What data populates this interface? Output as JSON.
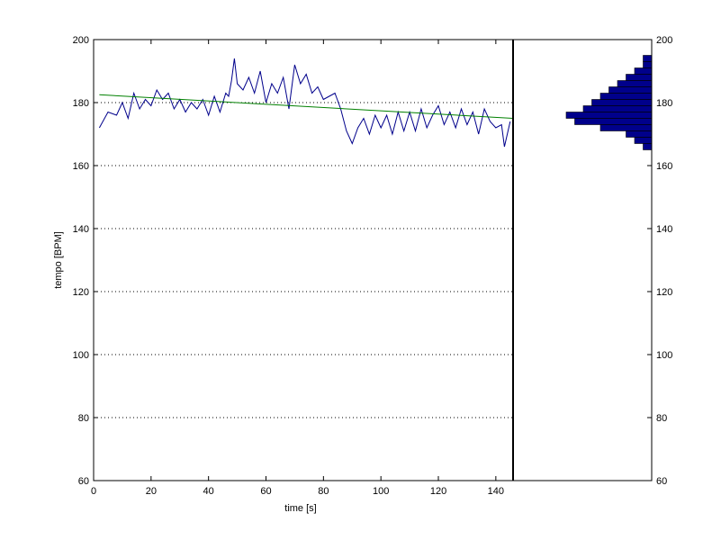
{
  "chart_data": {
    "type": "line",
    "xlabel": "time [s]",
    "ylabel": "tempo [BPM]",
    "xlim": [
      0,
      146
    ],
    "ylim": [
      60,
      200
    ],
    "xticks": [
      0,
      20,
      40,
      60,
      80,
      100,
      120,
      140
    ],
    "yticks": [
      60,
      80,
      100,
      120,
      140,
      160,
      180,
      200
    ],
    "grid": "horizontal-dotted",
    "series_colors": {
      "tempo": "#00008b",
      "trend": "#008000",
      "histogram": "#00008b"
    },
    "tempo_series": {
      "x": [
        2,
        5,
        8,
        10,
        12,
        14,
        16,
        18,
        20,
        22,
        24,
        26,
        28,
        30,
        32,
        34,
        36,
        38,
        40,
        42,
        44,
        46,
        47,
        48,
        49,
        50,
        52,
        54,
        56,
        58,
        60,
        62,
        64,
        66,
        68,
        70,
        72,
        74,
        76,
        78,
        80,
        82,
        84,
        86,
        88,
        90,
        92,
        94,
        96,
        98,
        100,
        102,
        104,
        106,
        108,
        110,
        112,
        114,
        116,
        118,
        120,
        122,
        124,
        126,
        128,
        130,
        132,
        134,
        136,
        138,
        140,
        142,
        143,
        144,
        145
      ],
      "y": [
        172,
        177,
        176,
        180,
        175,
        183,
        178,
        181,
        179,
        184,
        181,
        183,
        178,
        181,
        177,
        180,
        178,
        181,
        176,
        182,
        177,
        183,
        182,
        187,
        194,
        186,
        184,
        188,
        183,
        190,
        180,
        186,
        183,
        188,
        178,
        192,
        186,
        189,
        183,
        185,
        181,
        182,
        183,
        178,
        171,
        167,
        172,
        175,
        170,
        176,
        172,
        176,
        170,
        177,
        171,
        177,
        171,
        178,
        172,
        176,
        179,
        173,
        177,
        172,
        178,
        173,
        177,
        170,
        178,
        174,
        172,
        173,
        166,
        170,
        174
      ]
    },
    "trend_series": {
      "x": [
        2,
        146
      ],
      "y": [
        182.5,
        175
      ]
    },
    "histogram": {
      "bins": [
        166,
        168,
        170,
        172,
        174,
        176,
        178,
        180,
        182,
        184,
        186,
        188,
        190,
        192,
        194
      ],
      "counts": [
        1,
        2,
        3,
        6,
        9,
        10,
        8,
        7,
        6,
        5,
        4,
        3,
        2,
        1,
        1
      ],
      "max_count": 10
    }
  }
}
